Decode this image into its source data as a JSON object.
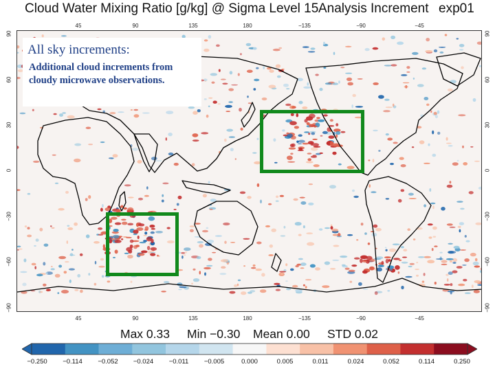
{
  "title": {
    "main": "Cloud Water Mixing Ratio [g/kg] @ Sigma Level 15",
    "type": "Analysis Increment",
    "experiment": "exp01"
  },
  "map": {
    "longitude_ticks": [
      "45",
      "90",
      "135",
      "180",
      "−135",
      "−90",
      "−45"
    ],
    "latitude_ticks": [
      "90",
      "60",
      "30",
      "0",
      "−30",
      "−60",
      "−90"
    ],
    "land_outline_color": "#000000",
    "highlight_box_color": "#11891c",
    "highlight_boxes": [
      "pacific",
      "southern-ocean"
    ]
  },
  "annotation": {
    "title": "All sky increments:",
    "body": "Additional cloud increments from cloudy microwave observations."
  },
  "stats": {
    "max": "Max 0.33",
    "min": "Min −0.30",
    "mean": "Mean 0.00",
    "std": "STD 0.02"
  },
  "colorbar": {
    "labels": [
      "−0.250",
      "−0.114",
      "−0.052",
      "−0.024",
      "−0.011",
      "−0.005",
      "0.000",
      "0.005",
      "0.011",
      "0.024",
      "0.052",
      "0.114",
      "0.250"
    ],
    "colors": [
      "#2166ac",
      "#4393c3",
      "#6eaed6",
      "#92c5de",
      "#b5d6ea",
      "#d1e5f0",
      "#f7f7f7",
      "#fde0d2",
      "#f8c1a7",
      "#f09272",
      "#de6049",
      "#c32f2f",
      "#8b0d1f"
    ]
  }
}
